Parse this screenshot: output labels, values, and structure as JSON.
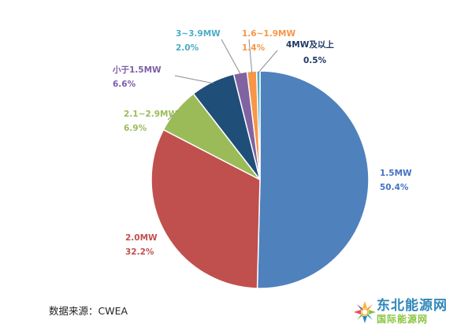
{
  "chart_data": {
    "type": "pie",
    "title": "",
    "slices": [
      {
        "label": "1.5MW",
        "value": 50.4,
        "value_text": "50.4%",
        "color": "#4f81bd",
        "label_color": "#4472c4"
      },
      {
        "label": "2.0MW",
        "value": 32.2,
        "value_text": "32.2%",
        "color": "#c0504d",
        "label_color": "#c0504d"
      },
      {
        "label": "2.1~2.9MW",
        "value": 6.9,
        "value_text": "6.9%",
        "color": "#9bbb59",
        "label_color": "#9bbb59"
      },
      {
        "label": "小于1.5MW",
        "value": 6.6,
        "value_text": "6.6%",
        "color": "#1f4e79",
        "label_color": "#7b5ea7"
      },
      {
        "label": "3~3.9MW",
        "value": 2.0,
        "value_text": "2.0%",
        "color": "#8064a2",
        "label_color": "#4bacc6"
      },
      {
        "label": "1.6~1.9MW",
        "value": 1.4,
        "value_text": "1.4%",
        "color": "#f79646",
        "label_color": "#f79646"
      },
      {
        "label": "4MW及以上",
        "value": 0.5,
        "value_text": "0.5%",
        "color": "#4bacc6",
        "label_color": "#1f3864"
      }
    ],
    "start_direction": "12 o'clock, clockwise"
  },
  "source_note": "数据来源：CWEA",
  "logo": {
    "main_text": "东北能源网",
    "sub_text": "国际能源网"
  }
}
